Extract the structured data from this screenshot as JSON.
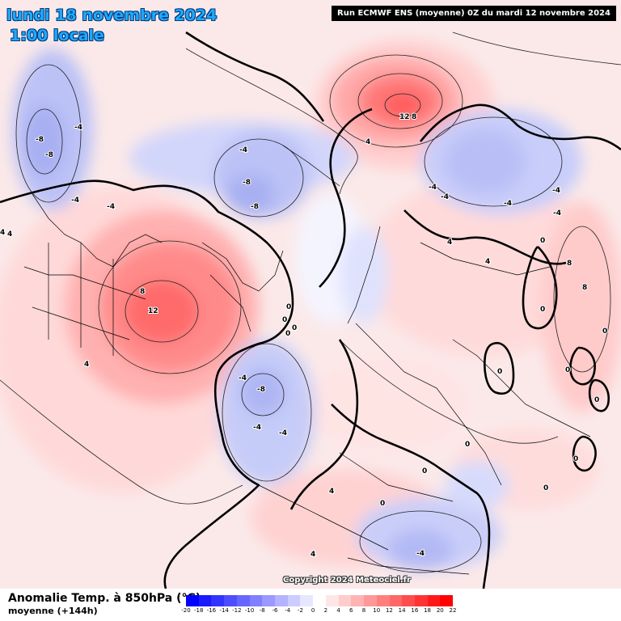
{
  "header": {
    "date": "lundi 18 novembre 2024",
    "time": "1:00 locale",
    "run": "Run ECMWF ENS (moyenne) 0Z du mardi 12 novembre 2024"
  },
  "copyright": "Copyright 2024 Meteociel.fr",
  "field": {
    "title": "Anomalie Temp. à 850hPa (°C)",
    "subtitle": "moyenne  (+144h)"
  },
  "scale": {
    "ticks": [
      "-20",
      "-18",
      "-16",
      "-14",
      "-12",
      "-10",
      "-8",
      "-6",
      "-4",
      "-2",
      "0",
      "2",
      "4",
      "6",
      "8",
      "10",
      "12",
      "14",
      "16",
      "18",
      "20",
      "22"
    ],
    "colors": [
      "#0000ff",
      "#1a1aff",
      "#3333ff",
      "#4d4dff",
      "#6666ff",
      "#7f7fff",
      "#9999ff",
      "#b3b3ff",
      "#ccccff",
      "#e6e6ff",
      "#ffffff",
      "#ffe6e6",
      "#ffcccc",
      "#ffb3b3",
      "#ff9999",
      "#ff7f7f",
      "#ff6666",
      "#ff4d4d",
      "#ff3333",
      "#ff1a1a",
      "#ff0000"
    ]
  },
  "contour_labels": [
    "-4",
    "-8",
    "-8",
    "-4",
    "-4",
    "4",
    "4",
    "8",
    "12",
    "-8",
    "-8",
    "-4",
    "12",
    "8",
    "4",
    "-4",
    "-4",
    "-4",
    "-4",
    "-4",
    "4",
    "4",
    "8",
    "8",
    "4",
    "0",
    "0",
    "0",
    "0",
    "0",
    "-4",
    "-8",
    "-4",
    "-4",
    "0",
    "0",
    "0",
    "0",
    "0",
    "0",
    "0",
    "0",
    "4",
    "-4",
    "4",
    "0",
    "0"
  ]
}
